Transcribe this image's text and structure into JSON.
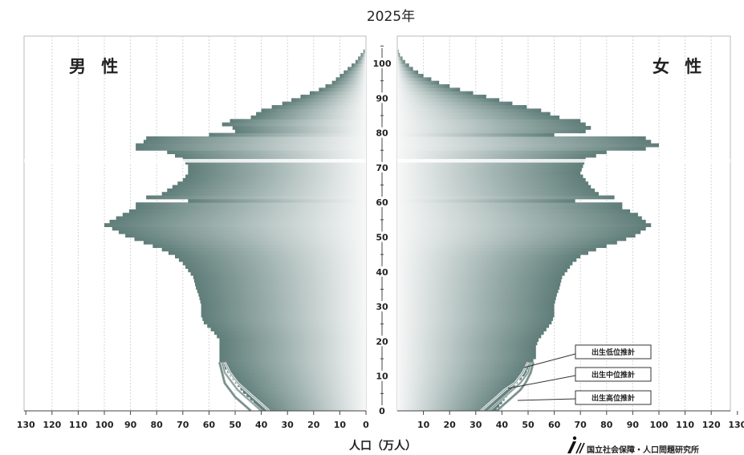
{
  "chart_data": {
    "type": "population-pyramid",
    "title": "2025年",
    "xlabel": "人口（万人）",
    "left_label": "男 性",
    "right_label": "女 性",
    "x_ticks": [
      130,
      120,
      110,
      100,
      90,
      80,
      70,
      60,
      50,
      40,
      30,
      20,
      10,
      0,
      10,
      20,
      30,
      40,
      50,
      60,
      70,
      80,
      90,
      100,
      110,
      120,
      130
    ],
    "y_ticks": [
      0,
      10,
      20,
      30,
      40,
      50,
      60,
      70,
      80,
      90,
      100
    ],
    "xlim": [
      0,
      130
    ],
    "ylim": [
      0,
      105
    ],
    "age_profile_male": [
      [
        0,
        41
      ],
      [
        2,
        43
      ],
      [
        5,
        47
      ],
      [
        8,
        50
      ],
      [
        10,
        52
      ],
      [
        12,
        54
      ],
      [
        14,
        56
      ],
      [
        15,
        56
      ],
      [
        18,
        56
      ],
      [
        20,
        56
      ],
      [
        22,
        58
      ],
      [
        25,
        62
      ],
      [
        27,
        63
      ],
      [
        30,
        63
      ],
      [
        33,
        64
      ],
      [
        35,
        65
      ],
      [
        38,
        66
      ],
      [
        40,
        68
      ],
      [
        42,
        70
      ],
      [
        44,
        73
      ],
      [
        46,
        78
      ],
      [
        48,
        85
      ],
      [
        50,
        92
      ],
      [
        52,
        97
      ],
      [
        53,
        100
      ],
      [
        54,
        98
      ],
      [
        56,
        93
      ],
      [
        58,
        88
      ],
      [
        59,
        88
      ],
      [
        60,
        68
      ],
      [
        61,
        84
      ],
      [
        62,
        78
      ],
      [
        64,
        74
      ],
      [
        66,
        70
      ],
      [
        68,
        68
      ],
      [
        70,
        68
      ],
      [
        72,
        70
      ],
      [
        74,
        76
      ],
      [
        75,
        88
      ],
      [
        76,
        88
      ],
      [
        77,
        85
      ],
      [
        78,
        84
      ],
      [
        79,
        60
      ],
      [
        80,
        50
      ],
      [
        81,
        51
      ],
      [
        82,
        55
      ],
      [
        83,
        52
      ],
      [
        84,
        44
      ],
      [
        86,
        40
      ],
      [
        88,
        32
      ],
      [
        90,
        25
      ],
      [
        92,
        18
      ],
      [
        94,
        13
      ],
      [
        96,
        10
      ],
      [
        98,
        7
      ],
      [
        100,
        4
      ],
      [
        102,
        2
      ],
      [
        104,
        0
      ]
    ],
    "age_profile_female": [
      [
        0,
        38
      ],
      [
        2,
        40
      ],
      [
        5,
        43
      ],
      [
        8,
        46
      ],
      [
        10,
        49
      ],
      [
        12,
        50
      ],
      [
        14,
        52
      ],
      [
        15,
        53
      ],
      [
        18,
        53
      ],
      [
        20,
        54
      ],
      [
        22,
        56
      ],
      [
        25,
        59
      ],
      [
        27,
        60
      ],
      [
        30,
        60
      ],
      [
        33,
        61
      ],
      [
        35,
        62
      ],
      [
        38,
        63
      ],
      [
        40,
        65
      ],
      [
        42,
        67
      ],
      [
        44,
        70
      ],
      [
        46,
        76
      ],
      [
        48,
        84
      ],
      [
        50,
        91
      ],
      [
        52,
        95
      ],
      [
        53,
        97
      ],
      [
        54,
        95
      ],
      [
        56,
        92
      ],
      [
        58,
        86
      ],
      [
        59,
        86
      ],
      [
        60,
        68
      ],
      [
        61,
        83
      ],
      [
        62,
        77
      ],
      [
        64,
        74
      ],
      [
        66,
        72
      ],
      [
        68,
        70
      ],
      [
        70,
        71
      ],
      [
        72,
        72
      ],
      [
        74,
        80
      ],
      [
        75,
        95
      ],
      [
        76,
        100
      ],
      [
        77,
        97
      ],
      [
        78,
        95
      ],
      [
        79,
        60
      ],
      [
        80,
        72
      ],
      [
        81,
        74
      ],
      [
        82,
        72
      ],
      [
        83,
        70
      ],
      [
        84,
        62
      ],
      [
        86,
        55
      ],
      [
        88,
        44
      ],
      [
        90,
        34
      ],
      [
        92,
        24
      ],
      [
        94,
        16
      ],
      [
        96,
        10
      ],
      [
        98,
        6
      ],
      [
        100,
        3
      ],
      [
        102,
        1
      ],
      [
        104,
        0
      ]
    ],
    "birth_projection_0_14": {
      "male": {
        "low": [
          37,
          40,
          43,
          46,
          49,
          52,
          54
        ],
        "mid": [
          40,
          43,
          46,
          49,
          51,
          54,
          55
        ],
        "high": [
          44,
          47,
          50,
          52,
          54,
          55,
          56
        ]
      },
      "female": {
        "low": [
          32,
          35,
          38,
          41,
          45,
          48,
          50
        ],
        "mid": [
          35,
          38,
          41,
          44,
          47,
          50,
          51
        ],
        "high": [
          38,
          41,
          44,
          47,
          49,
          51,
          52
        ]
      }
    },
    "annotations": [
      "出生低位推計",
      "出生中位推計",
      "出生高位推計"
    ],
    "colors": {
      "bar_dark": "#6e8a86",
      "bar_mid": "#a9bab7",
      "bar_light": "#f4f6f5",
      "grid": "#c8c8c8",
      "text": "#222222"
    }
  },
  "credit": "国立社会保障・人口問題研究所"
}
